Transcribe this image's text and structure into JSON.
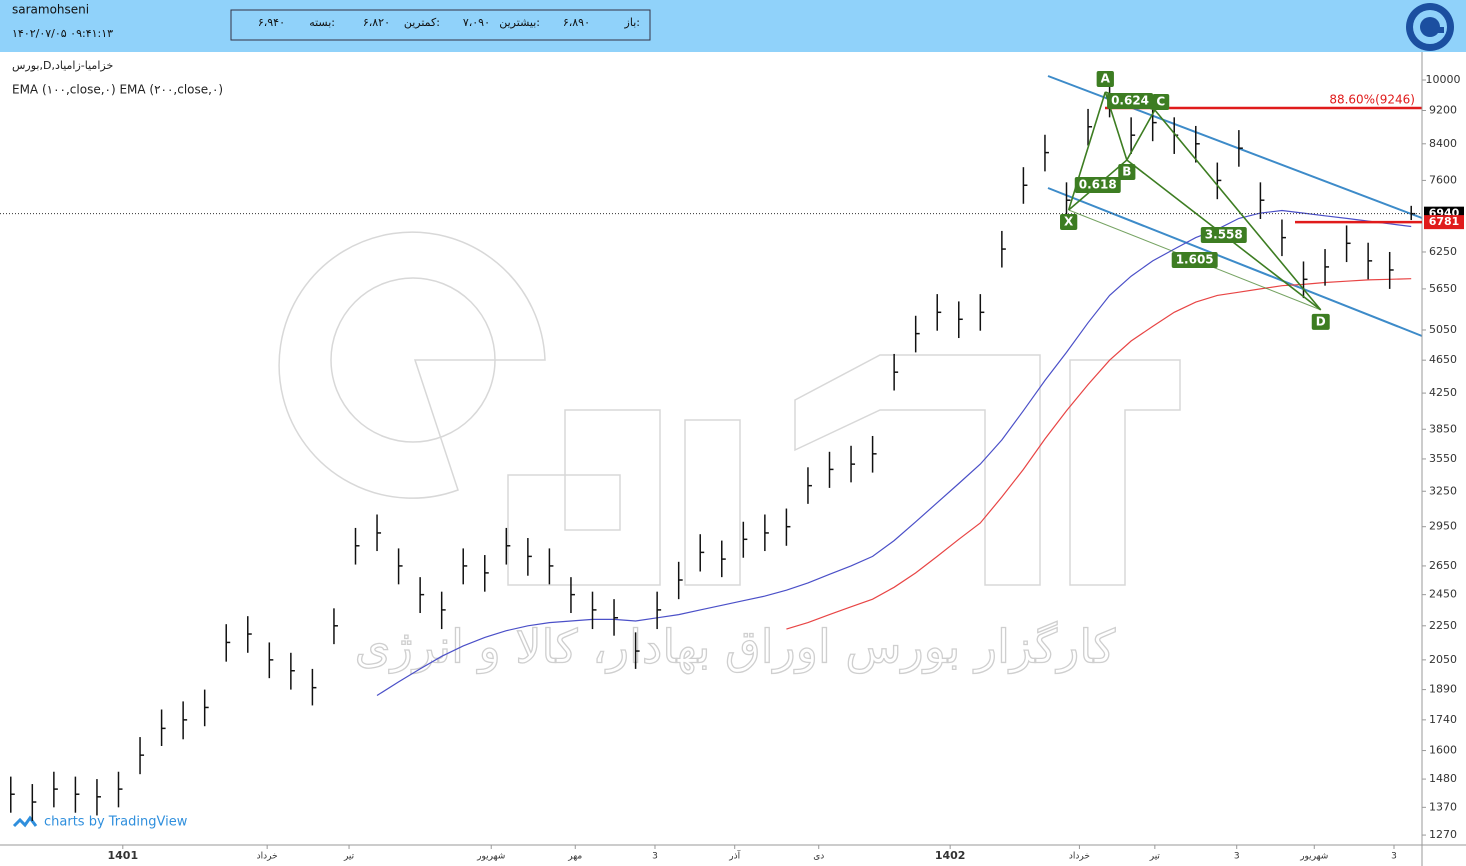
{
  "header": {
    "user": "saramohseni",
    "datetime": "۱۴۰۲/۰۷/۰۵ ۰۹:۴۱:۱۳",
    "ohlc": [
      {
        "name": "باز:",
        "value": "۶،۸۹۰"
      },
      {
        "name": "بیشترین:",
        "value": "۷،۰۹۰"
      },
      {
        "name": "کمترین:",
        "value": "۶،۸۲۰"
      },
      {
        "name": "بسته:",
        "value": "۶،۹۴۰"
      }
    ]
  },
  "legend": {
    "symbol": "بورس,D,خزامیا-زامیاد",
    "indicators": "EMA (۱۰۰,close,۰) EMA (۲۰۰,close,۰)"
  },
  "watermark": "کارگزار بورس اوراق بهادار، کالا و انرژی",
  "footer": "charts by TradingView",
  "chart_data": {
    "type": "ohlc",
    "log_scale": true,
    "color": "#111111",
    "xlim": [
      -0.5,
      65.5
    ],
    "ylim": [
      1236,
      10707
    ],
    "xticks": [
      {
        "value": 5.2,
        "label": "1401"
      },
      {
        "value": 11.9,
        "label": "خرداد"
      },
      {
        "value": 15.7,
        "label": "تیر"
      },
      {
        "value": 22.3,
        "label": "شهریور"
      },
      {
        "value": 26.2,
        "label": "مهر"
      },
      {
        "value": 29.9,
        "label": "3"
      },
      {
        "value": 33.6,
        "label": "آذر"
      },
      {
        "value": 37.5,
        "label": "دی"
      },
      {
        "value": 43.6,
        "label": "1402"
      },
      {
        "value": 49.6,
        "label": "خرداد"
      },
      {
        "value": 53.1,
        "label": "تیر"
      },
      {
        "value": 56.9,
        "label": "3"
      },
      {
        "value": 60.5,
        "label": "شهریور"
      },
      {
        "value": 64.2,
        "label": "3"
      }
    ],
    "yticks": [
      10000,
      9200,
      8400,
      7600,
      6250,
      5650,
      5050,
      4650,
      4250,
      3850,
      3550,
      3250,
      2950,
      2650,
      2450,
      2250,
      2050,
      1890,
      1740,
      1600,
      1480,
      1370,
      1270
    ],
    "values": [
      1420,
      1390,
      1440,
      1420,
      1410,
      1440,
      1580,
      1700,
      1740,
      1800,
      2150,
      2200,
      2050,
      1990,
      1900,
      2250,
      2800,
      2900,
      2650,
      2450,
      2350,
      2650,
      2600,
      2800,
      2720,
      2650,
      2450,
      2350,
      2300,
      2100,
      2350,
      2550,
      2750,
      2700,
      2850,
      2900,
      2950,
      3300,
      3450,
      3500,
      3600,
      4500,
      5000,
      5300,
      5200,
      5300,
      6300,
      7500,
      8200,
      7200,
      8800,
      9500,
      8600,
      8900,
      8600,
      8400,
      7600,
      8300,
      7200,
      6500,
      5800,
      6000,
      6400,
      6100,
      5950,
      6940
    ],
    "high": [
      1490,
      1460,
      1510,
      1490,
      1480,
      1510,
      1660,
      1790,
      1830,
      1890,
      2260,
      2310,
      2150,
      2090,
      2000,
      2360,
      2940,
      3050,
      2780,
      2570,
      2470,
      2780,
      2730,
      2940,
      2860,
      2780,
      2570,
      2470,
      2420,
      2210,
      2470,
      2680,
      2890,
      2840,
      2990,
      3050,
      3100,
      3470,
      3620,
      3680,
      3780,
      4730,
      5250,
      5570,
      5460,
      5570,
      6620,
      7880,
      8610,
      7560,
      9240,
      9980,
      9030,
      9350,
      9030,
      8820,
      7980,
      8720,
      7560,
      6830,
      6090,
      6300,
      6720,
      6410,
      6250,
      7090
    ],
    "low": [
      1350,
      1320,
      1370,
      1350,
      1340,
      1370,
      1500,
      1620,
      1650,
      1710,
      2040,
      2090,
      1950,
      1890,
      1810,
      2140,
      2660,
      2760,
      2520,
      2330,
      2230,
      2520,
      2470,
      2660,
      2580,
      2520,
      2330,
      2230,
      2190,
      2000,
      2230,
      2420,
      2610,
      2570,
      2710,
      2760,
      2800,
      3140,
      3280,
      3330,
      3420,
      4280,
      4750,
      5040,
      4940,
      5040,
      5990,
      7130,
      7790,
      6840,
      8360,
      9030,
      8170,
      8460,
      8170,
      7980,
      7220,
      7890,
      6840,
      6180,
      5510,
      5700,
      6080,
      5800,
      5650,
      6820
    ],
    "series": [
      {
        "name": "EMA 100",
        "color": "#4b50c8",
        "values": [
          null,
          null,
          null,
          null,
          null,
          null,
          null,
          null,
          null,
          null,
          null,
          null,
          null,
          null,
          null,
          null,
          null,
          1860,
          1930,
          2000,
          2070,
          2130,
          2180,
          2220,
          2250,
          2270,
          2280,
          2290,
          2290,
          2280,
          2300,
          2320,
          2350,
          2380,
          2410,
          2440,
          2480,
          2530,
          2590,
          2650,
          2720,
          2840,
          2990,
          3150,
          3320,
          3500,
          3740,
          4050,
          4400,
          4750,
          5150,
          5550,
          5850,
          6100,
          6300,
          6500,
          6650,
          6850,
          6950,
          7000,
          6950,
          6900,
          6850,
          6800,
          6750,
          6700
        ]
      },
      {
        "name": "EMA 200",
        "color": "#e84545",
        "values": [
          null,
          null,
          null,
          null,
          null,
          null,
          null,
          null,
          null,
          null,
          null,
          null,
          null,
          null,
          null,
          null,
          null,
          null,
          null,
          null,
          null,
          null,
          null,
          null,
          null,
          null,
          null,
          null,
          null,
          null,
          null,
          null,
          null,
          null,
          null,
          null,
          2230,
          2270,
          2320,
          2370,
          2420,
          2500,
          2600,
          2720,
          2850,
          2980,
          3200,
          3450,
          3750,
          4050,
          4350,
          4650,
          4900,
          5100,
          5300,
          5450,
          5550,
          5600,
          5650,
          5700,
          5720,
          5750,
          5770,
          5790,
          5800,
          5810
        ]
      }
    ],
    "price_labels": [
      {
        "value": 6940,
        "color": "#000000"
      },
      {
        "value": 6781,
        "color": "#e01b1b"
      }
    ],
    "fib_label": "88.60%(9246)",
    "pattern": {
      "color": "#3d7d22",
      "points": [
        {
          "label": "X",
          "x": 49.1,
          "y": 7010
        },
        {
          "label": "A",
          "x": 50.8,
          "y": 9677
        },
        {
          "label": "B",
          "x": 51.8,
          "y": 8035
        },
        {
          "label": "C",
          "x": 53.1,
          "y": 9213
        },
        {
          "label": "D",
          "x": 60.8,
          "y": 5335
        }
      ],
      "ratios": [
        0.624,
        0.618,
        3.558,
        1.605
      ]
    }
  }
}
